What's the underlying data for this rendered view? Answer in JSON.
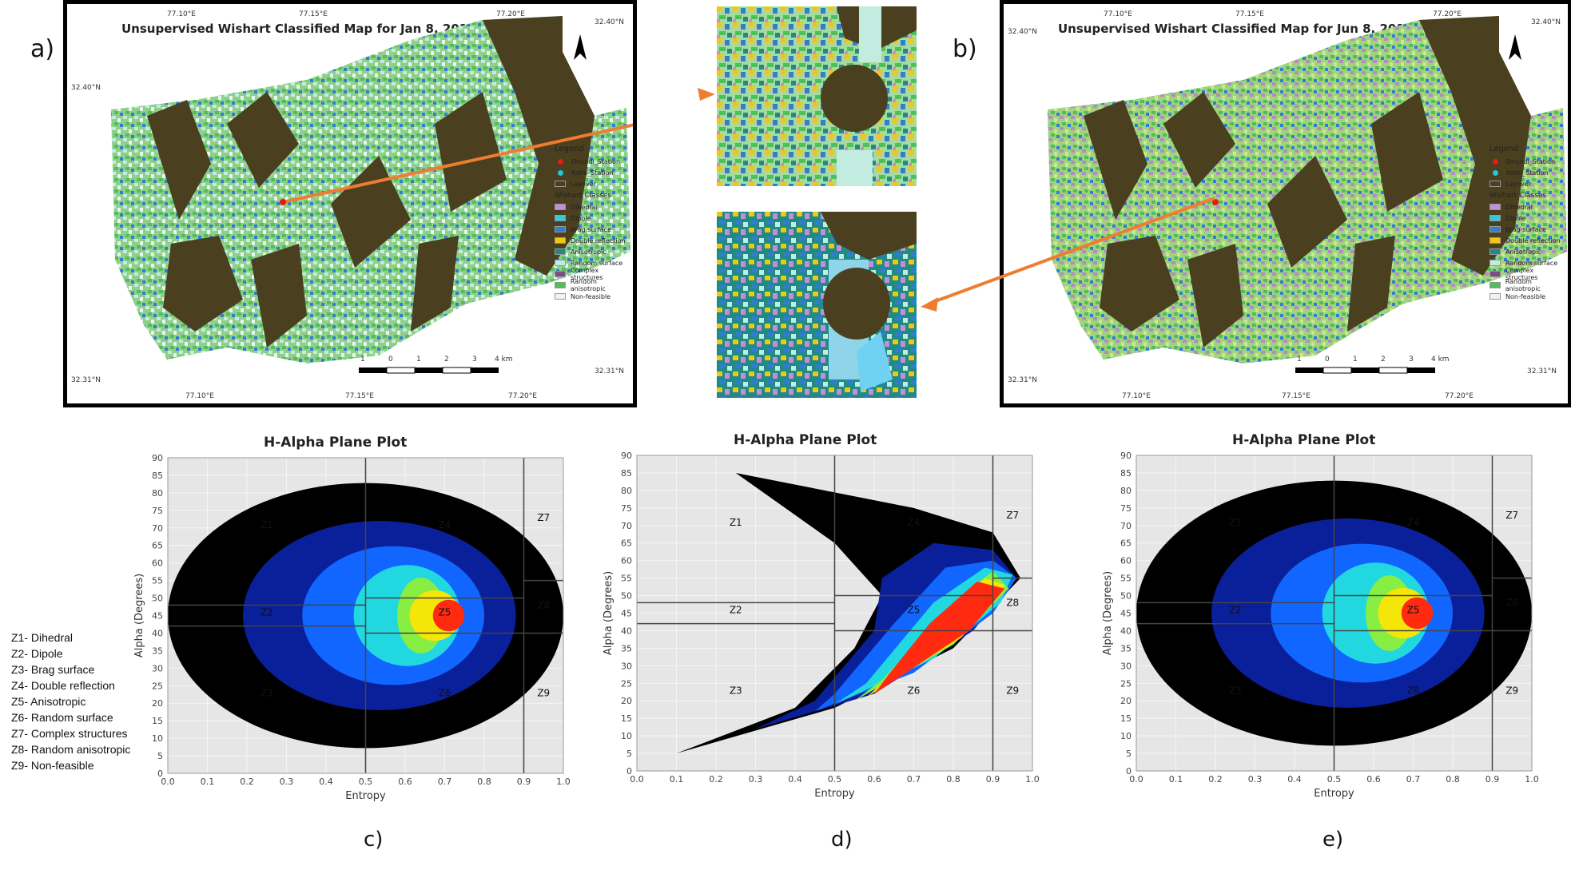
{
  "panels": {
    "a": "a)",
    "b": "b)",
    "c": "c)",
    "d": "d)",
    "e": "e)"
  },
  "maps": [
    {
      "title": "Unsupervised Wishart Classified Map for Jan 8, 2016",
      "coords_top": [
        "77.10°E",
        "77.15°E",
        "77.20°E"
      ],
      "coords_bottom": [
        "77.10°E",
        "77.15°E",
        "77.20°E"
      ],
      "lat_top": "32.40°N",
      "lat_bottom": "32.31°N"
    },
    {
      "title": "Unsupervised Wishart Classified Map for Jun 8, 2017",
      "coords_top": [
        "77.10°E",
        "77.15°E",
        "77.20°E"
      ],
      "coords_bottom": [
        "77.10°E",
        "77.15°E",
        "77.20°E"
      ],
      "lat_top": "32.40°N",
      "lat_bottom": "32.31°N"
    }
  ],
  "scalebar": {
    "labels": [
      "1",
      "0",
      "1",
      "2",
      "3",
      "4 km"
    ]
  },
  "legend": {
    "title": "Legend",
    "points": [
      {
        "label": "Dhundi_Station",
        "color": "#e31a1c"
      },
      {
        "label": "Kothi_Station",
        "color": "#22c7d8"
      }
    ],
    "layover": {
      "label": "Layover",
      "color": "#4a3f1e"
    },
    "classes_title": "Wishart Classes",
    "classes": [
      {
        "label": "Dihedral",
        "color": "#c48fd8"
      },
      {
        "label": "Dipole",
        "color": "#2ecbe0"
      },
      {
        "label": "Brag surface",
        "color": "#2f7fd0"
      },
      {
        "label": "Double reflection",
        "color": "#f2c712"
      },
      {
        "label": "Anisotropic",
        "color": "#1f8a86"
      },
      {
        "label": "Random surface",
        "color": "#c2ecdf"
      },
      {
        "label": "Complex structures",
        "color": "#7a4f86"
      },
      {
        "label": "Random anisotropic",
        "color": "#4fbe5b"
      },
      {
        "label": "Non-feasible",
        "color": "#f2f2f2"
      }
    ]
  },
  "zone_list": [
    "Z1- Dihedral",
    "Z2- Dipole",
    "Z3- Brag surface",
    "Z4- Double reflection",
    "Z5- Anisotropic",
    "Z6- Random surface",
    "Z7- Complex structures",
    "Z8- Random anisotropic",
    "Z9- Non-feasible"
  ],
  "chart_data": [
    {
      "type": "heatmap",
      "title": "H-Alpha Plane Plot",
      "xlabel": "Entropy",
      "ylabel": "Alpha (Degrees)",
      "xlim": [
        0,
        1
      ],
      "ylim": [
        0,
        90
      ],
      "xticks": [
        "0.0",
        "0.1",
        "0.2",
        "0.3",
        "0.4",
        "0.5",
        "0.6",
        "0.7",
        "0.8",
        "0.9",
        "1.0"
      ],
      "yticks": [
        "0",
        "5",
        "10",
        "15",
        "20",
        "25",
        "30",
        "35",
        "40",
        "45",
        "50",
        "55",
        "60",
        "65",
        "70",
        "75",
        "80",
        "85",
        "90"
      ],
      "zones": [
        "Z1",
        "Z2",
        "Z3",
        "Z4",
        "Z5",
        "Z6",
        "Z7",
        "Z8",
        "Z9"
      ],
      "shape": "ellipse"
    },
    {
      "type": "heatmap",
      "title": "H-Alpha Plane Plot",
      "xlabel": "Entropy",
      "ylabel": "Alpha (Degrees)",
      "xlim": [
        0,
        1
      ],
      "ylim": [
        0,
        90
      ],
      "xticks": [
        "0.0",
        "0.1",
        "0.2",
        "0.3",
        "0.4",
        "0.5",
        "0.6",
        "0.7",
        "0.8",
        "0.9",
        "1.0"
      ],
      "yticks": [
        "0",
        "5",
        "10",
        "15",
        "20",
        "25",
        "30",
        "35",
        "40",
        "45",
        "50",
        "55",
        "60",
        "65",
        "70",
        "75",
        "80",
        "85",
        "90"
      ],
      "zones": [
        "Z1",
        "Z2",
        "Z3",
        "Z4",
        "Z5",
        "Z6",
        "Z7",
        "Z8",
        "Z9"
      ],
      "shape": "arrow"
    },
    {
      "type": "heatmap",
      "title": "H-Alpha Plane Plot",
      "xlabel": "Entropy",
      "ylabel": "Alpha (Degrees)",
      "xlim": [
        0,
        1
      ],
      "ylim": [
        0,
        90
      ],
      "xticks": [
        "0.0",
        "0.1",
        "0.2",
        "0.3",
        "0.4",
        "0.5",
        "0.6",
        "0.7",
        "0.8",
        "0.9",
        "1.0"
      ],
      "yticks": [
        "0",
        "5",
        "10",
        "15",
        "20",
        "25",
        "30",
        "35",
        "40",
        "45",
        "50",
        "55",
        "60",
        "65",
        "70",
        "75",
        "80",
        "85",
        "90"
      ],
      "zones": [
        "Z1",
        "Z2",
        "Z3",
        "Z4",
        "Z5",
        "Z6",
        "Z7",
        "Z8",
        "Z9"
      ],
      "shape": "ellipse"
    }
  ]
}
